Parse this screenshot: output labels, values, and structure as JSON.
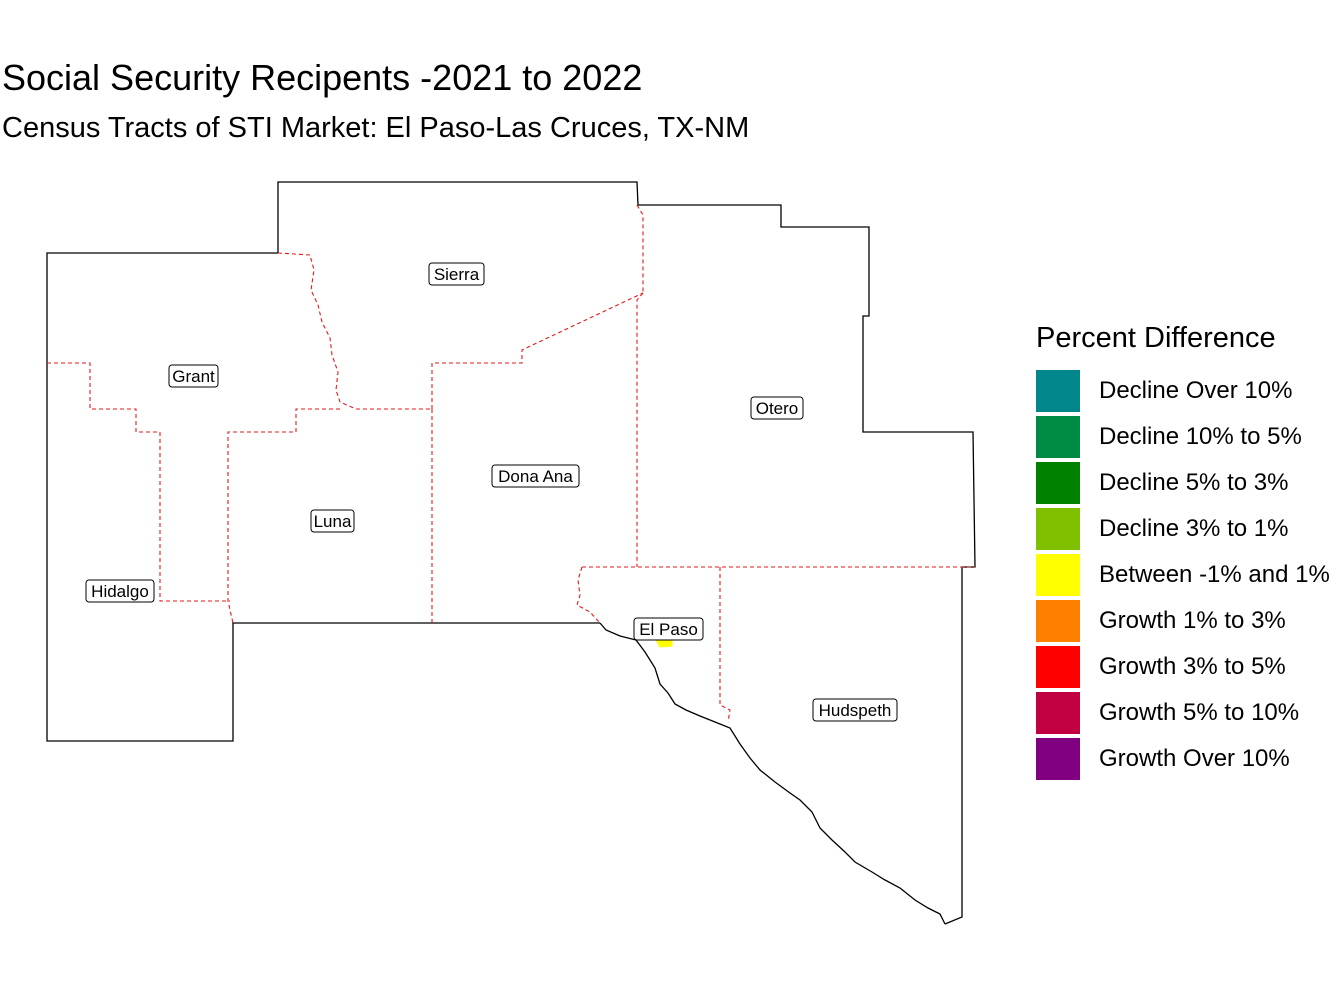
{
  "title": "Social Security Recipents -2021 to 2022",
  "subtitle": "Census Tracts of STI Market: El Paso-Las Cruces, TX-NM",
  "counties": [
    {
      "id": "sierra",
      "label": "Sierra"
    },
    {
      "id": "grant",
      "label": "Grant"
    },
    {
      "id": "otero",
      "label": "Otero"
    },
    {
      "id": "dona-ana",
      "label": "Dona Ana"
    },
    {
      "id": "luna",
      "label": "Luna"
    },
    {
      "id": "hidalgo",
      "label": "Hidalgo"
    },
    {
      "id": "el-paso",
      "label": "El Paso"
    },
    {
      "id": "hudspeth",
      "label": "Hudspeth"
    }
  ],
  "legend": {
    "title": "Percent Difference",
    "items": [
      {
        "label": "Decline Over 10%",
        "color": "#00868B"
      },
      {
        "label": "Decline 10% to 5%",
        "color": "#008B45"
      },
      {
        "label": "Decline 5% to 3%",
        "color": "#008000"
      },
      {
        "label": "Decline 3% to 1%",
        "color": "#7FC000"
      },
      {
        "label": "Between -1% and 1%",
        "color": "#FFFF00"
      },
      {
        "label": "Growth 1% to 3%",
        "color": "#FF8000"
      },
      {
        "label": "Growth 3% to 5%",
        "color": "#FF0000"
      },
      {
        "label": "Growth 5% to 10%",
        "color": "#C00040"
      },
      {
        "label": "Growth Over 10%",
        "color": "#800080"
      }
    ]
  },
  "tract_highlight_color": "#FFFF00"
}
